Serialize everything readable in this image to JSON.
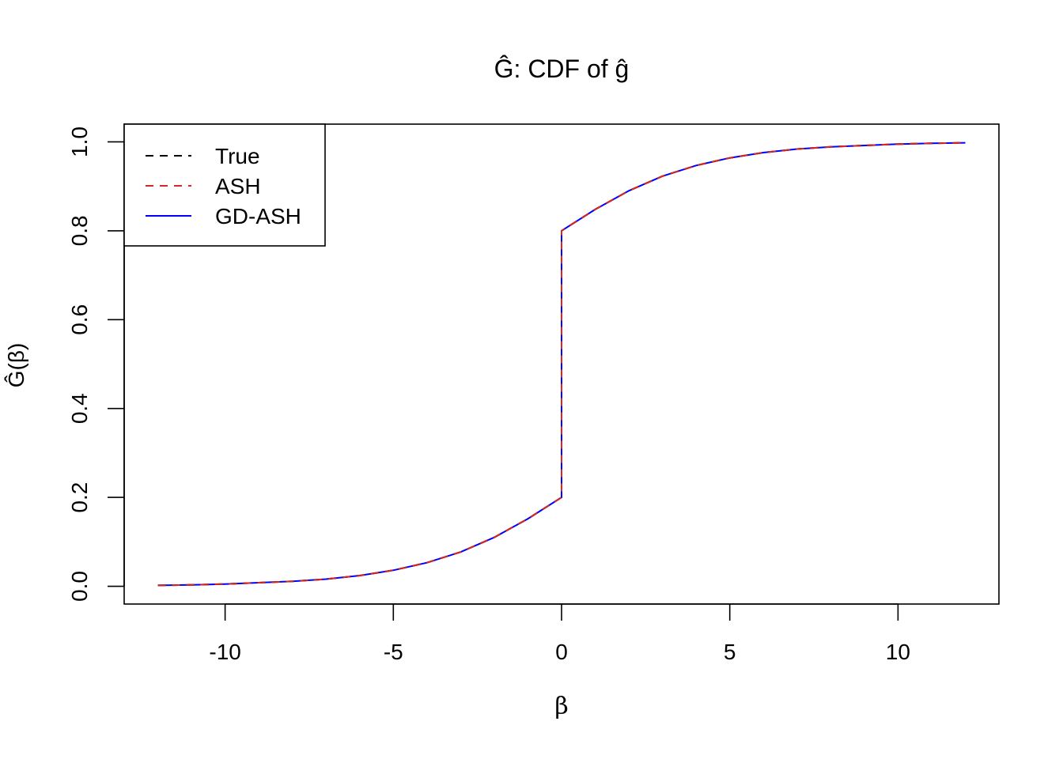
{
  "chart_data": {
    "type": "line",
    "title": "Ĝ: CDF of ĝ",
    "xlabel": "β",
    "ylabel": "Ĝ(β)",
    "xlim": [
      -13,
      13
    ],
    "ylim": [
      -0.04,
      1.04
    ],
    "x_ticks": [
      -10,
      -5,
      0,
      5,
      10
    ],
    "x_tick_labels": [
      "-10",
      "-5",
      "0",
      "5",
      "10"
    ],
    "y_ticks": [
      0.0,
      0.2,
      0.4,
      0.6,
      0.8,
      1.0
    ],
    "y_tick_labels": [
      "0.0",
      "0.2",
      "0.4",
      "0.6",
      "0.8",
      "1.0"
    ],
    "grid": false,
    "legend_position": "top-left",
    "series": [
      {
        "name": "True",
        "color": "#000000",
        "dash": "dashed",
        "x": [
          -12,
          -11,
          -10,
          -9,
          -8,
          -7,
          -6,
          -5,
          -4,
          -3,
          -2,
          -1,
          0,
          0,
          1,
          2,
          3,
          4,
          5,
          6,
          7,
          8,
          9,
          10,
          11,
          12
        ],
        "y": [
          0.002,
          0.003,
          0.005,
          0.008,
          0.011,
          0.016,
          0.024,
          0.036,
          0.053,
          0.077,
          0.11,
          0.152,
          0.2,
          0.8,
          0.848,
          0.89,
          0.923,
          0.947,
          0.964,
          0.976,
          0.984,
          0.989,
          0.992,
          0.995,
          0.997,
          0.998
        ]
      },
      {
        "name": "ASH",
        "color": "#d62728",
        "dash": "dashed",
        "x": [
          -12,
          -11,
          -10,
          -9,
          -8,
          -7,
          -6,
          -5,
          -4,
          -3,
          -2,
          -1,
          0,
          0,
          1,
          2,
          3,
          4,
          5,
          6,
          7,
          8,
          9,
          10,
          11,
          12
        ],
        "y": [
          0.002,
          0.003,
          0.005,
          0.008,
          0.011,
          0.016,
          0.024,
          0.036,
          0.053,
          0.077,
          0.11,
          0.152,
          0.2,
          0.8,
          0.848,
          0.89,
          0.923,
          0.947,
          0.964,
          0.976,
          0.984,
          0.989,
          0.992,
          0.995,
          0.997,
          0.998
        ]
      },
      {
        "name": "GD-ASH",
        "color": "#0000ff",
        "dash": "solid",
        "x": [
          -12,
          -11,
          -10,
          -9,
          -8,
          -7,
          -6,
          -5,
          -4,
          -3,
          -2,
          -1,
          0,
          0,
          1,
          2,
          3,
          4,
          5,
          6,
          7,
          8,
          9,
          10,
          11,
          12
        ],
        "y": [
          0.002,
          0.003,
          0.005,
          0.008,
          0.011,
          0.016,
          0.024,
          0.036,
          0.053,
          0.077,
          0.11,
          0.152,
          0.2,
          0.8,
          0.848,
          0.89,
          0.923,
          0.947,
          0.964,
          0.976,
          0.984,
          0.989,
          0.992,
          0.995,
          0.997,
          0.998
        ]
      }
    ]
  }
}
